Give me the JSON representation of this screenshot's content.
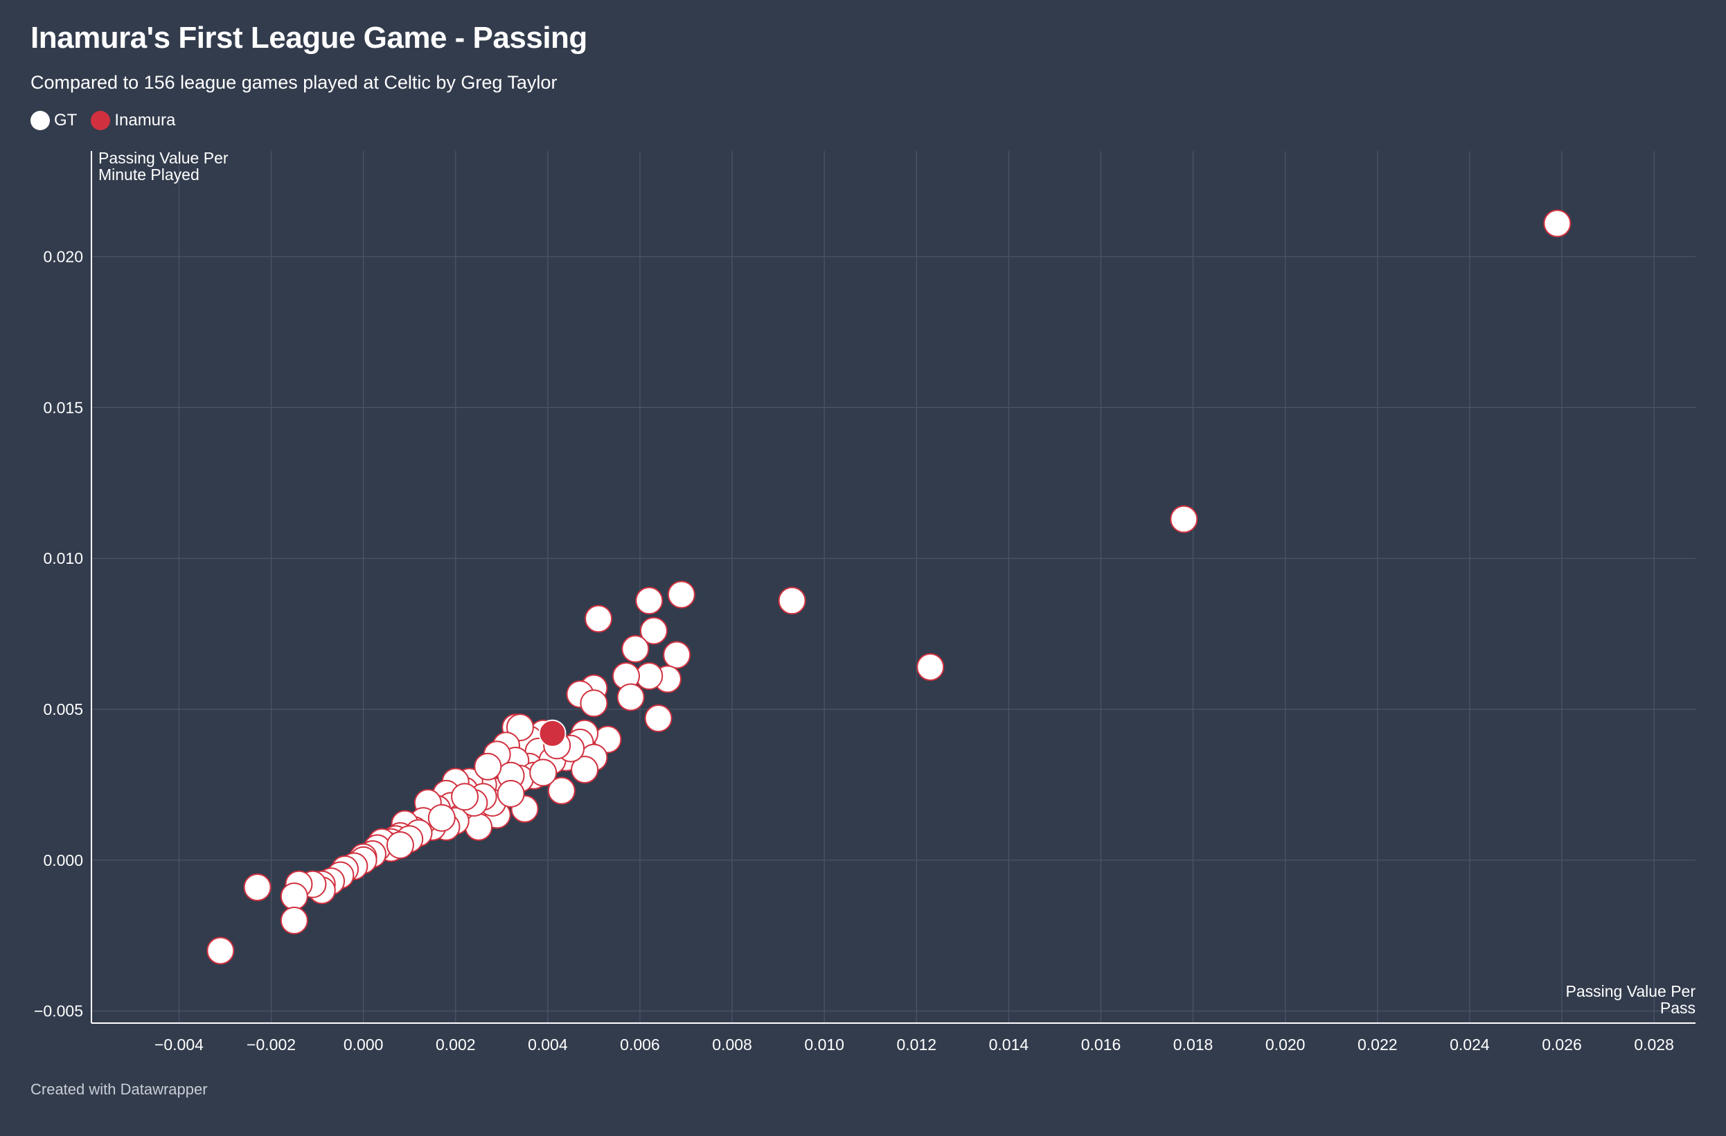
{
  "title": "Inamura's First League Game - Passing",
  "subtitle": "Compared to 156 league games played at Celtic by Greg Taylor",
  "footer": "Created with Datawrapper",
  "colors": {
    "background": "#333c4d",
    "gt_fill": "#ffffff",
    "gt_stroke": "#d1313f",
    "inamura_fill": "#d1313f",
    "grid": "#4a5466"
  },
  "chart_data": {
    "type": "scatter",
    "title": "Inamura's First League Game - Passing",
    "subtitle": "Compared to 156 league games played at Celtic by Greg Taylor",
    "xlabel_lines": [
      "Passing Value Per",
      "Pass"
    ],
    "ylabel_lines": [
      "Passing Value Per",
      "Minute Played"
    ],
    "xlim": [
      -0.0059,
      0.0289
    ],
    "ylim": [
      -0.0054,
      0.0235
    ],
    "x_ticks": [
      -0.004,
      -0.002,
      0.0,
      0.002,
      0.004,
      0.006,
      0.008,
      0.01,
      0.012,
      0.014,
      0.016,
      0.018,
      0.02,
      0.022,
      0.024,
      0.026,
      0.028
    ],
    "x_tick_labels": [
      "−0.004",
      "−0.002",
      "0.000",
      "0.002",
      "0.004",
      "0.006",
      "0.008",
      "0.010",
      "0.012",
      "0.014",
      "0.016",
      "0.018",
      "0.020",
      "0.022",
      "0.024",
      "0.026",
      "0.028"
    ],
    "y_ticks": [
      -0.005,
      0.0,
      0.005,
      0.01,
      0.015,
      0.02
    ],
    "y_tick_labels": [
      "−0.005",
      "0.000",
      "0.005",
      "0.010",
      "0.015",
      "0.020"
    ],
    "grid": true,
    "legend": [
      {
        "name": "GT",
        "color": "#ffffff"
      },
      {
        "name": "Inamura",
        "color": "#d1313f"
      }
    ],
    "series": [
      {
        "name": "GT",
        "points": [
          [
            0.0259,
            0.0211
          ],
          [
            0.0178,
            0.0113
          ],
          [
            0.0123,
            0.0064
          ],
          [
            0.0093,
            0.0086
          ],
          [
            0.0069,
            0.0088
          ],
          [
            0.0062,
            0.0086
          ],
          [
            0.0051,
            0.008
          ],
          [
            0.0063,
            0.0076
          ],
          [
            0.0059,
            0.007
          ],
          [
            0.0068,
            0.0068
          ],
          [
            0.0066,
            0.006
          ],
          [
            0.0062,
            0.0061
          ],
          [
            0.0057,
            0.0061
          ],
          [
            0.005,
            0.0057
          ],
          [
            0.0047,
            0.0055
          ],
          [
            0.0058,
            0.0054
          ],
          [
            0.005,
            0.0052
          ],
          [
            0.0064,
            0.0047
          ],
          [
            0.0053,
            0.004
          ],
          [
            0.0048,
            0.0042
          ],
          [
            0.0047,
            0.0039
          ],
          [
            0.0044,
            0.0034
          ],
          [
            0.005,
            0.0034
          ],
          [
            0.0048,
            0.003
          ],
          [
            0.0043,
            0.0023
          ],
          [
            0.0039,
            0.0042
          ],
          [
            0.0036,
            0.004
          ],
          [
            0.0033,
            0.0044
          ],
          [
            0.0034,
            0.0044
          ],
          [
            0.0031,
            0.0038
          ],
          [
            0.0038,
            0.0036
          ],
          [
            0.0036,
            0.0031
          ],
          [
            0.0033,
            0.0033
          ],
          [
            0.0029,
            0.0035
          ],
          [
            0.0037,
            0.0028
          ],
          [
            0.0034,
            0.0027
          ],
          [
            0.0031,
            0.0024
          ],
          [
            0.0028,
            0.0023
          ],
          [
            0.0035,
            0.0017
          ],
          [
            0.0029,
            0.0015
          ],
          [
            0.0026,
            0.0025
          ],
          [
            0.0023,
            0.0026
          ],
          [
            0.0022,
            0.0023
          ],
          [
            0.002,
            0.0026
          ],
          [
            0.0018,
            0.0022
          ],
          [
            0.0019,
            0.0018
          ],
          [
            0.0016,
            0.0017
          ],
          [
            0.0014,
            0.0019
          ],
          [
            0.0024,
            0.0017
          ],
          [
            0.0021,
            0.0014
          ],
          [
            0.0025,
            0.0011
          ],
          [
            0.002,
            0.0013
          ],
          [
            0.0018,
            0.0011
          ],
          [
            0.0015,
            0.0011
          ],
          [
            0.0013,
            0.0013
          ],
          [
            0.0011,
            0.001
          ],
          [
            0.0009,
            0.0012
          ],
          [
            0.0008,
            0.0008
          ],
          [
            0.0007,
            0.0007
          ],
          [
            0.0006,
            0.0006
          ],
          [
            0.0005,
            0.0005
          ],
          [
            0.0006,
            0.0004
          ],
          [
            0.0004,
            0.0006
          ],
          [
            0.0003,
            0.0004
          ],
          [
            0.0002,
            0.0002
          ],
          [
            0.0,
            0.0001
          ],
          [
            0.0,
            0.0
          ],
          [
            -0.0002,
            -0.0002
          ],
          [
            -0.0004,
            -0.0003
          ],
          [
            -0.0005,
            -0.0005
          ],
          [
            -0.0007,
            -0.0007
          ],
          [
            -0.0009,
            -0.0008
          ],
          [
            -0.0009,
            -0.001
          ],
          [
            -0.0011,
            -0.0008
          ],
          [
            -0.0014,
            -0.0008
          ],
          [
            -0.0015,
            -0.0012
          ],
          [
            -0.0015,
            -0.002
          ],
          [
            -0.0023,
            -0.0009
          ],
          [
            -0.0031,
            -0.003
          ],
          [
            0.0028,
            0.0019
          ],
          [
            0.0026,
            0.0021
          ],
          [
            0.0024,
            0.0019
          ],
          [
            0.0022,
            0.0021
          ],
          [
            0.0032,
            0.0028
          ],
          [
            0.0027,
            0.0031
          ],
          [
            0.0041,
            0.0033
          ],
          [
            0.0045,
            0.0037
          ],
          [
            0.0042,
            0.0038
          ],
          [
            0.0039,
            0.0029
          ],
          [
            0.0032,
            0.0022
          ],
          [
            0.0017,
            0.0014
          ],
          [
            0.0012,
            0.0009
          ],
          [
            0.001,
            0.0007
          ],
          [
            0.0008,
            0.0005
          ]
        ]
      },
      {
        "name": "Inamura",
        "points": [
          [
            0.0041,
            0.0042
          ]
        ]
      }
    ]
  }
}
